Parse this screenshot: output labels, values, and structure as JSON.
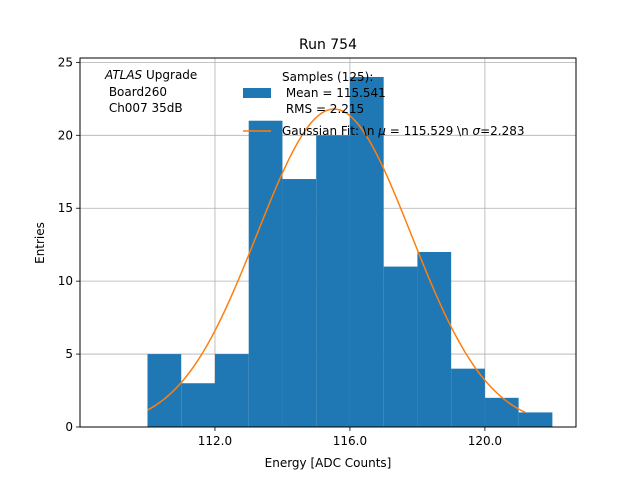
{
  "chart_data": {
    "type": "bar",
    "title": "Run 754",
    "xlabel": "Energy [ADC Counts]",
    "ylabel": "Entries",
    "xlim": [
      108.0,
      122.7
    ],
    "ylim": [
      0,
      25.3
    ],
    "xticks": [
      112.0,
      116.0,
      120.0
    ],
    "xtick_labels": [
      "112.0",
      "116.0",
      "120.0"
    ],
    "yticks": [
      0,
      5,
      10,
      15,
      20,
      25
    ],
    "grid": true,
    "annotation": {
      "line1_italic": "ATLAS",
      "line1_rest": " Upgrade",
      "line2": " Board260",
      "line3": " Ch007 35dB"
    },
    "histogram": {
      "name": "Samples (125):",
      "mean_label": " Mean = 115.541",
      "rms_label": " RMS = 2.215",
      "color": "#1f77b4",
      "bin_edges": [
        110,
        111,
        112,
        113,
        114,
        115,
        116,
        117,
        118,
        119,
        120,
        121,
        122
      ],
      "counts": [
        5,
        3,
        5,
        21,
        17,
        20,
        24,
        11,
        12,
        4,
        2,
        1
      ]
    },
    "fit": {
      "label_prefix": "Gaussian Fit: \\n ",
      "mu_symbol": "μ",
      "mu_text": " = 115.529 \\n ",
      "sigma_symbol": "σ",
      "sigma_text": "=2.283",
      "mu": 115.529,
      "sigma": 2.283,
      "amplitude": 21.8,
      "x_range": [
        110.0,
        121.2
      ],
      "color": "#ff7f0e"
    },
    "legend_position": "upper-center"
  }
}
